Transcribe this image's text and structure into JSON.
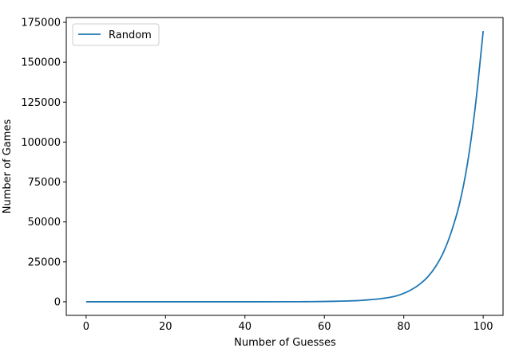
{
  "chart_data": {
    "type": "line",
    "title": "",
    "xlabel": "Number of Guesses",
    "ylabel": "Number of Games",
    "xlim": [
      -5,
      105
    ],
    "ylim": [
      -8500,
      178000
    ],
    "xticks": [
      0,
      20,
      40,
      60,
      80,
      100
    ],
    "yticks": [
      0,
      25000,
      50000,
      75000,
      100000,
      125000,
      150000,
      175000
    ],
    "grid": false,
    "legend": {
      "position": "top-left",
      "entries": [
        "Random"
      ]
    },
    "series": [
      {
        "name": "Random",
        "color": "#1f77b4",
        "x": [
          0,
          10,
          20,
          30,
          40,
          50,
          55,
          60,
          64,
          68,
          70,
          72,
          74,
          76,
          78,
          80,
          82,
          84,
          86,
          88,
          90,
          92,
          94,
          96,
          98,
          100
        ],
        "y": [
          0,
          0,
          0,
          0,
          0,
          20,
          60,
          200,
          400,
          700,
          1000,
          1400,
          1900,
          2600,
          3600,
          5300,
          7700,
          11000,
          15500,
          22000,
          31000,
          44000,
          61000,
          86000,
          122000,
          169500
        ]
      }
    ]
  }
}
